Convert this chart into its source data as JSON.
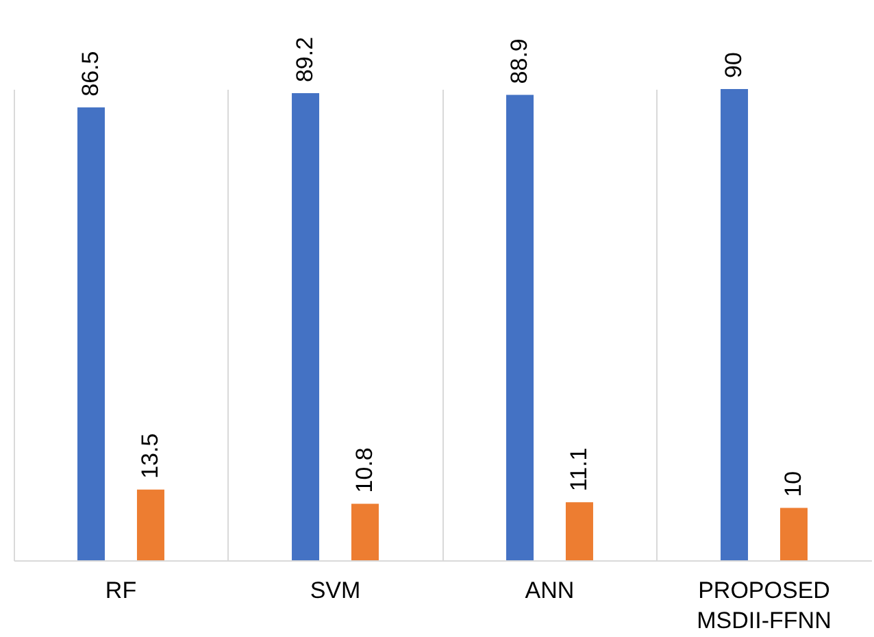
{
  "chart_data": {
    "type": "bar",
    "categories": [
      "RF",
      "SVM",
      "ANN",
      "PROPOSED MSDII-FFNN"
    ],
    "series": [
      {
        "color": "#4472c4",
        "values": [
          86.5,
          89.2,
          88.9,
          90
        ]
      },
      {
        "color": "#ed7d31",
        "values": [
          13.5,
          10.8,
          11.1,
          10
        ]
      }
    ],
    "data_labels": true,
    "grid": "x",
    "legend": false
  }
}
